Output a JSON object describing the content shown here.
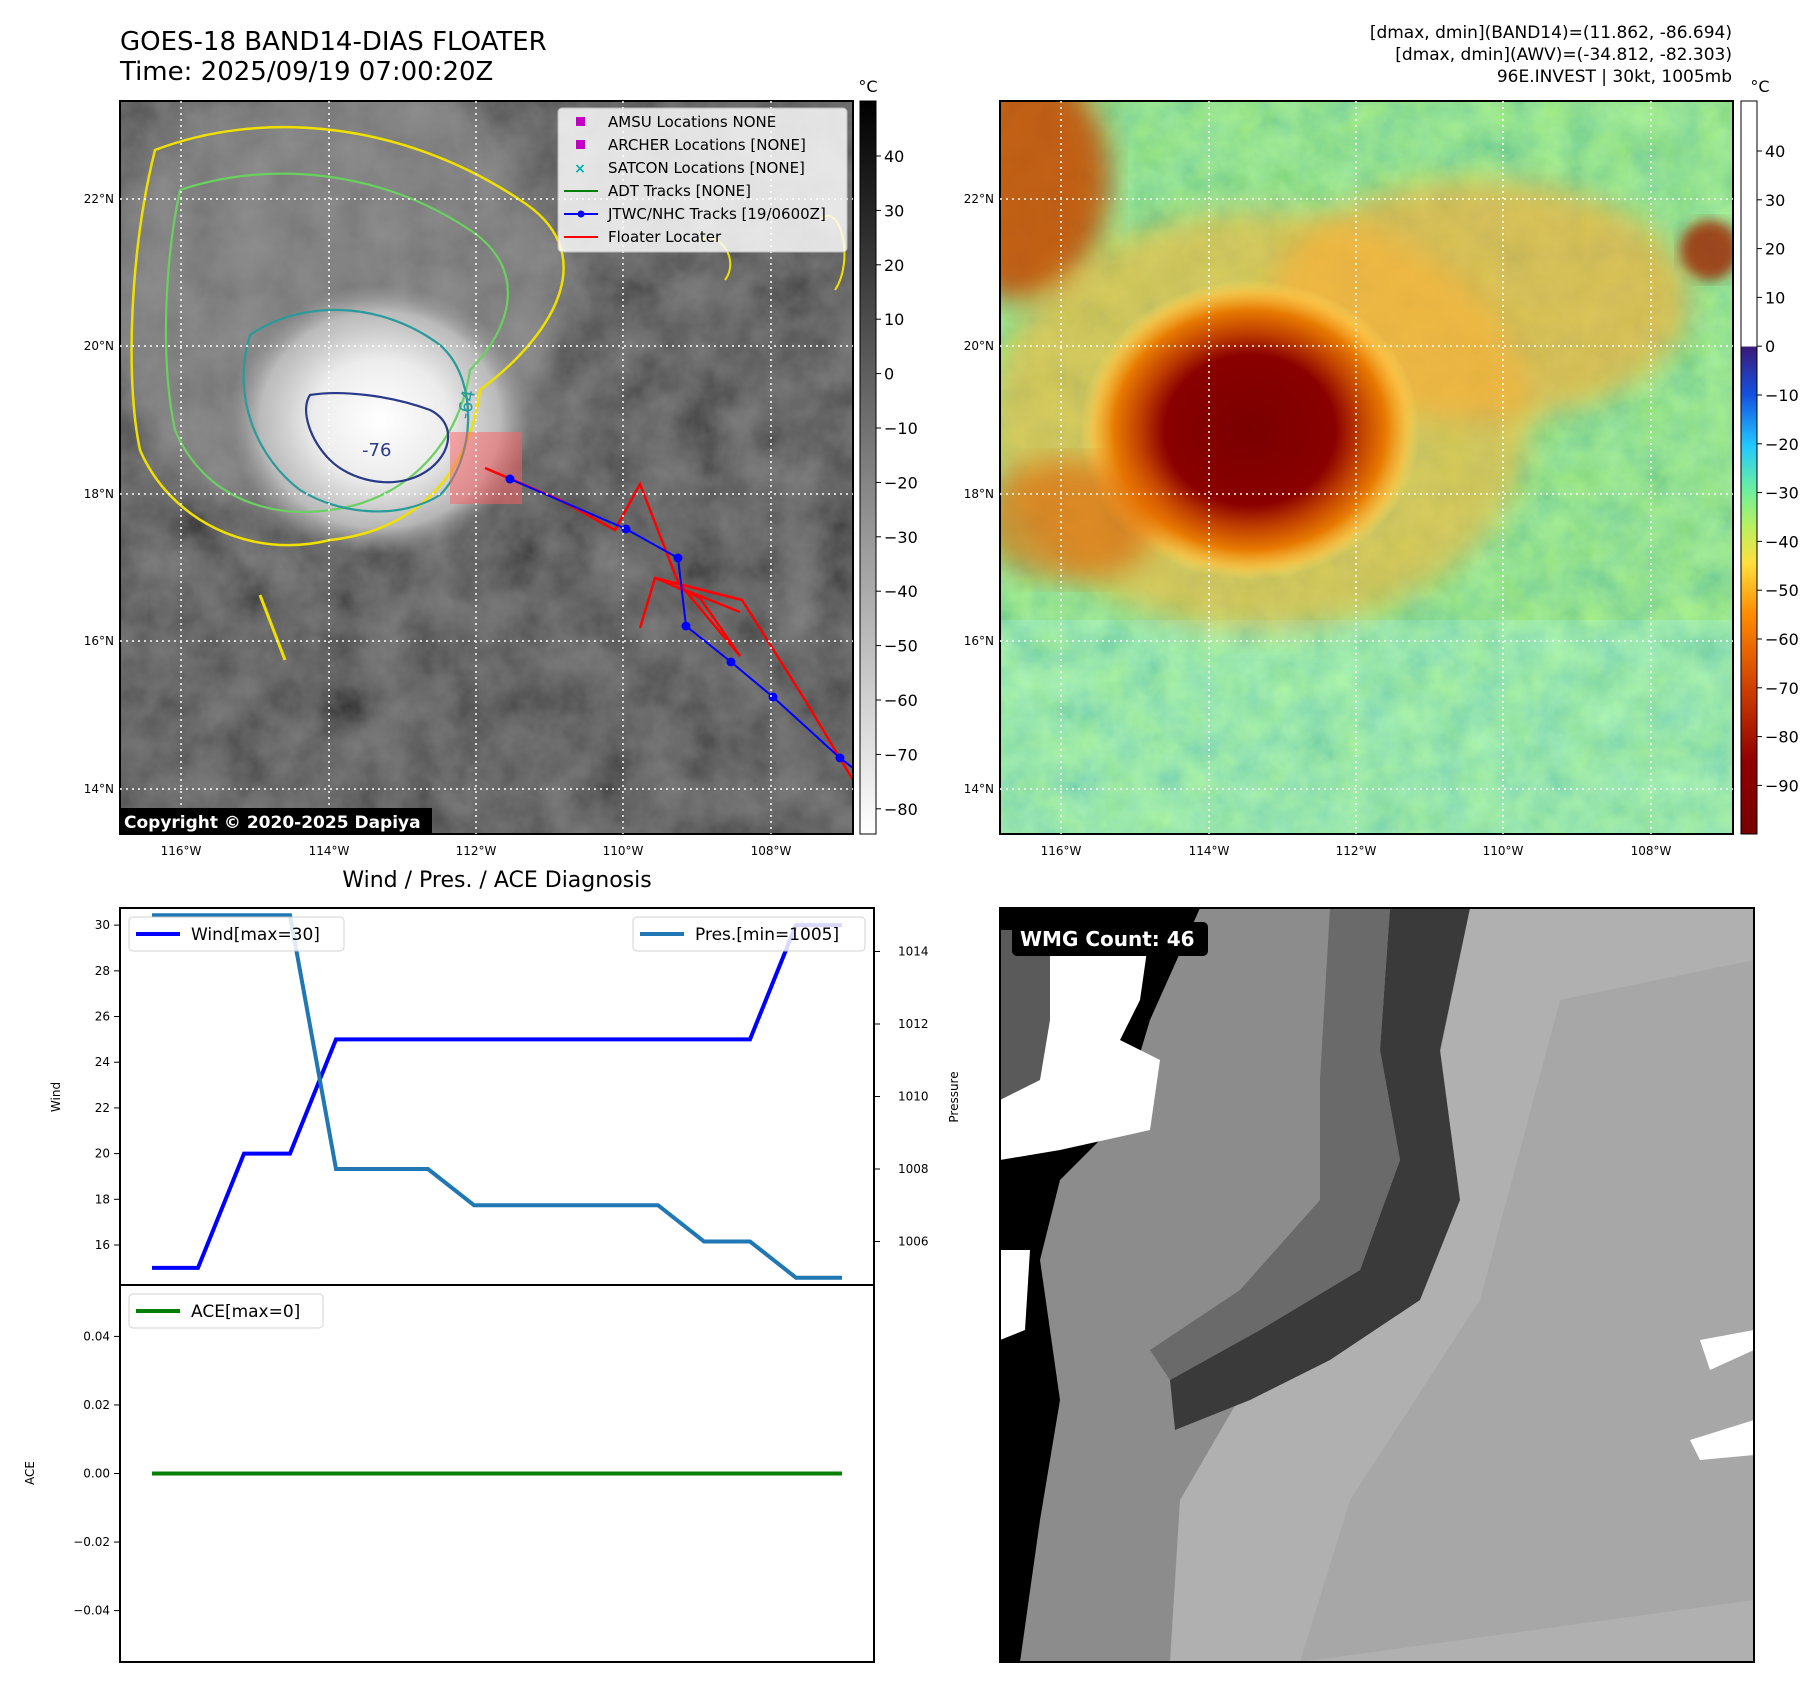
{
  "header": {
    "title_line1": "GOES-18 BAND14-DIAS FLOATER",
    "title_line2": "Time: 2025/09/19 07:00:20Z",
    "info_line1": "[dmax, dmin](BAND14)=(11.862, -86.694)",
    "info_line2": "[dmax, dmin](AWV)=(-34.812, -82.303)",
    "info_line3": "96E.INVEST | 30kt, 1005mb"
  },
  "map_axes": {
    "lon_ticks": [
      "116°W",
      "114°W",
      "112°W",
      "110°W",
      "108°W"
    ],
    "lat_ticks": [
      "22°N",
      "20°N",
      "18°N",
      "16°N",
      "14°N"
    ]
  },
  "ir_panel": {
    "legend": [
      {
        "label": "AMSU Locations NONE",
        "symbol": "square",
        "color": "#c000c0"
      },
      {
        "label": "ARCHER Locations [NONE]",
        "symbol": "square",
        "color": "#c000c0"
      },
      {
        "label": "SATCON Locations [NONE]",
        "symbol": "x",
        "color": "#00b0b0"
      },
      {
        "label": "ADT Tracks [NONE]",
        "symbol": "line",
        "color": "#008000"
      },
      {
        "label": "JTWC/NHC Tracks [19/0600Z]",
        "symbol": "line-dot",
        "color": "#0000ff"
      },
      {
        "label": "Floater Locater",
        "symbol": "line",
        "color": "#ff0000"
      }
    ],
    "contour_labels": [
      "-76",
      "-64"
    ],
    "copyright": "Copyright © 2020-2025 Dapiya",
    "colorbar_unit": "°C",
    "colorbar_ticks": [
      "40",
      "30",
      "20",
      "10",
      "0",
      "−10",
      "−20",
      "−30",
      "−40",
      "−50",
      "−60",
      "−70",
      "−80"
    ]
  },
  "wv_panel": {
    "colorbar_unit": "°C",
    "colorbar_ticks": [
      "40",
      "30",
      "20",
      "10",
      "0",
      "−10",
      "−20",
      "−30",
      "−40",
      "−50",
      "−60",
      "−70",
      "−80",
      "−90"
    ]
  },
  "chart_data": [
    {
      "type": "line",
      "title": "Wind / Pres. / ACE Diagnosis",
      "ylabel": "Wind",
      "y2label": "Pressure",
      "ylim": [
        14.25,
        30.75
      ],
      "y2lim": [
        1004.8,
        1015.2
      ],
      "yticks": [
        "30",
        "28",
        "26",
        "24",
        "22",
        "20",
        "18",
        "16"
      ],
      "y2ticks": [
        "1014",
        "1012",
        "1010",
        "1008",
        "1006"
      ],
      "series": [
        {
          "name": "Wind[max=30]",
          "axis": "left",
          "color": "#0000ff",
          "values": [
            15,
            15,
            20,
            20,
            25,
            25,
            25,
            25,
            25,
            25,
            25,
            25,
            25,
            25,
            30,
            30
          ]
        },
        {
          "name": "Pres.[min=1005]",
          "axis": "right",
          "color": "#1f77b4",
          "values": [
            1015,
            1015,
            1015,
            1015,
            1008,
            1008,
            1008,
            1007,
            1007,
            1007,
            1007,
            1007,
            1006,
            1006,
            1005,
            1005
          ]
        }
      ]
    },
    {
      "type": "line",
      "ylabel": "ACE",
      "ylim": [
        -0.055,
        0.055
      ],
      "yticks": [
        "0.04",
        "0.02",
        "0.00",
        "−0.02",
        "−0.04"
      ],
      "series": [
        {
          "name": "ACE[max=0]",
          "color": "#008000",
          "values": [
            0,
            0,
            0,
            0,
            0,
            0,
            0,
            0,
            0,
            0,
            0,
            0,
            0,
            0,
            0,
            0
          ]
        }
      ]
    }
  ],
  "wmg_panel": {
    "label": "WMG Count: 46"
  }
}
